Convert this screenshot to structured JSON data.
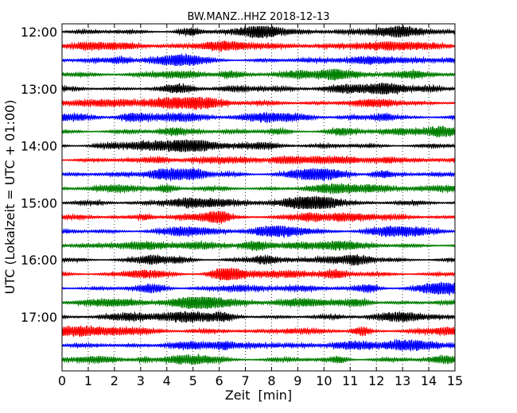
{
  "chart_data": {
    "type": "line",
    "title": "BW.MANZ..HHZ 2018-12-13",
    "xlabel": "Zeit  [min]",
    "ylabel": "UTC (Lokalzeit = UTC + 01:00)",
    "xlim": [
      0,
      15
    ],
    "x_ticks": [
      "0",
      "1",
      "2",
      "3",
      "4",
      "5",
      "6",
      "7",
      "8",
      "9",
      "10",
      "11",
      "12",
      "13",
      "14",
      "15"
    ],
    "y_tick_labels": [
      "12:00",
      "13:00",
      "14:00",
      "15:00",
      "16:00",
      "17:00"
    ],
    "start_time": "12:00",
    "trace_interval_minutes": 15,
    "grid": "vertical dotted",
    "colors": [
      "#000000",
      "#ff0000",
      "#0000ff",
      "#007f00"
    ],
    "traces": [
      {
        "start": "12:00",
        "color": "#000000"
      },
      {
        "start": "12:15",
        "color": "#ff0000"
      },
      {
        "start": "12:30",
        "color": "#0000ff"
      },
      {
        "start": "12:45",
        "color": "#007f00"
      },
      {
        "start": "13:00",
        "color": "#000000"
      },
      {
        "start": "13:15",
        "color": "#ff0000"
      },
      {
        "start": "13:30",
        "color": "#0000ff"
      },
      {
        "start": "13:45",
        "color": "#007f00"
      },
      {
        "start": "14:00",
        "color": "#000000"
      },
      {
        "start": "14:15",
        "color": "#ff0000"
      },
      {
        "start": "14:30",
        "color": "#0000ff"
      },
      {
        "start": "14:45",
        "color": "#007f00"
      },
      {
        "start": "15:00",
        "color": "#000000"
      },
      {
        "start": "15:15",
        "color": "#ff0000"
      },
      {
        "start": "15:30",
        "color": "#0000ff"
      },
      {
        "start": "15:45",
        "color": "#007f00"
      },
      {
        "start": "16:00",
        "color": "#000000"
      },
      {
        "start": "16:15",
        "color": "#ff0000"
      },
      {
        "start": "16:30",
        "color": "#0000ff"
      },
      {
        "start": "16:45",
        "color": "#007f00"
      },
      {
        "start": "17:00",
        "color": "#000000"
      },
      {
        "start": "17:15",
        "color": "#ff0000"
      },
      {
        "start": "17:30",
        "color": "#0000ff"
      },
      {
        "start": "17:45",
        "color": "#007f00"
      }
    ]
  }
}
